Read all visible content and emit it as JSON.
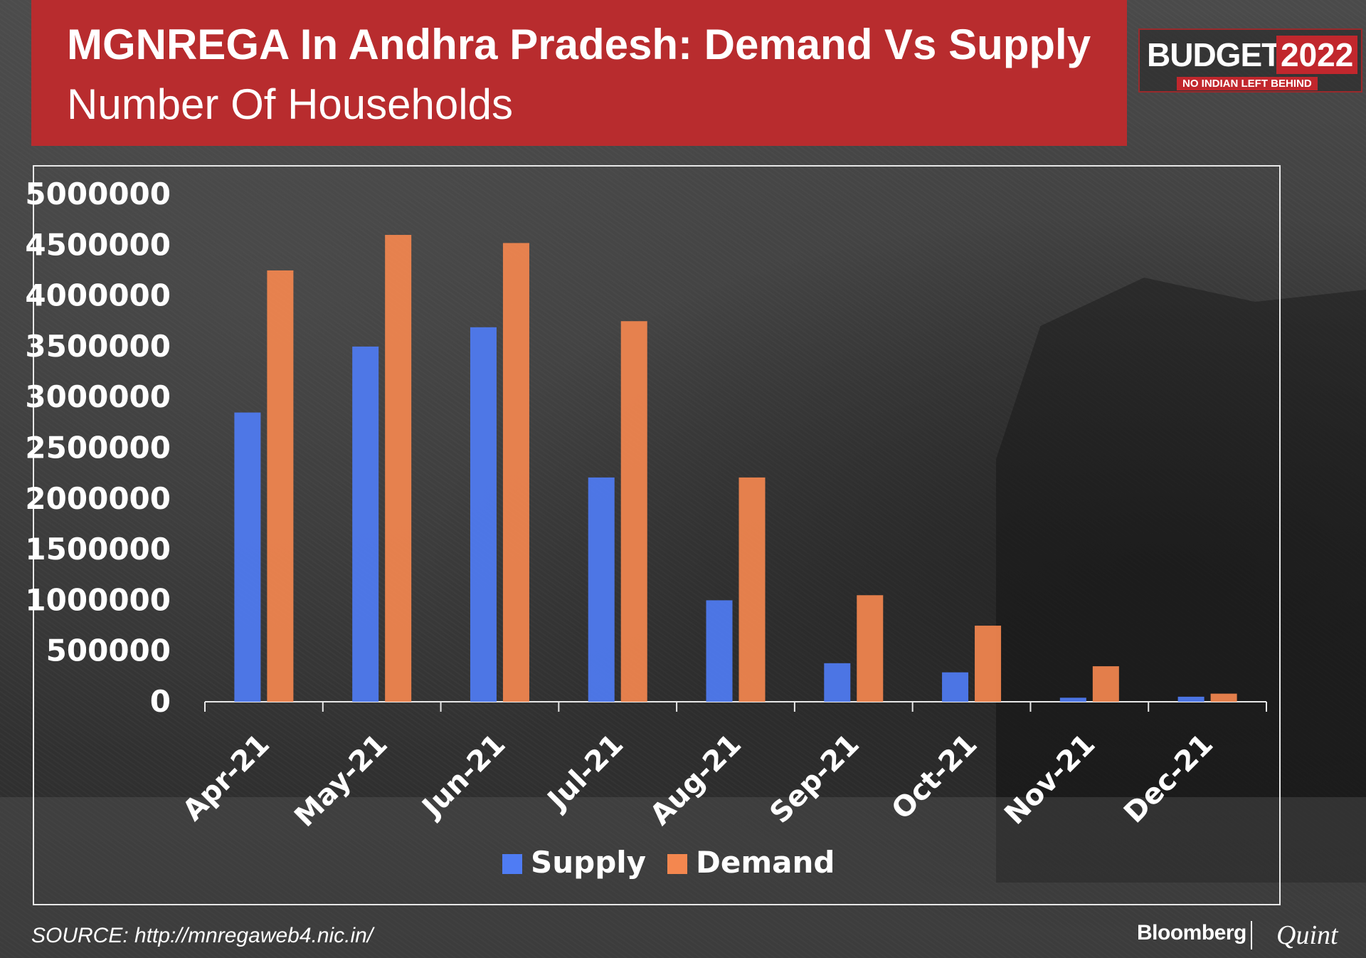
{
  "header": {
    "title": "MGNREGA In Andhra Pradesh: Demand Vs Supply",
    "subtitle": "Number Of Households"
  },
  "badge": {
    "budget_label": "BUDGET",
    "year_label": "2022",
    "tagline": "NO INDIAN LEFT BEHIND"
  },
  "footer": {
    "source": "SOURCE: http://mnregaweb4.nic.in/",
    "logo_left": "Bloomberg",
    "logo_right": "Quint"
  },
  "colors": {
    "title_background": "#b82c2e",
    "supply": "#4f7cf4",
    "demand": "#f4874f",
    "axis": "#e8e8e8",
    "text": "#ffffff"
  },
  "chart_data": {
    "type": "bar",
    "title": "MGNREGA In Andhra Pradesh: Demand Vs Supply",
    "subtitle": "Number Of Households",
    "categories": [
      "Apr-21",
      "May-21",
      "Jun-21",
      "Jul-21",
      "Aug-21",
      "Sep-21",
      "Oct-21",
      "Nov-21",
      "Dec-21"
    ],
    "series": [
      {
        "name": "Supply",
        "values": [
          2850000,
          3500000,
          3690000,
          2210000,
          1000000,
          380000,
          290000,
          40000,
          50000
        ]
      },
      {
        "name": "Demand",
        "values": [
          4250000,
          4600000,
          4520000,
          3750000,
          2210000,
          1050000,
          750000,
          350000,
          80000
        ]
      }
    ],
    "xlabel": "",
    "ylabel": "",
    "ylim": [
      0,
      5000000
    ],
    "yticks": [
      "0",
      "500000",
      "1000000",
      "1500000",
      "2000000",
      "2500000",
      "3000000",
      "3500000",
      "4000000",
      "4500000",
      "5000000"
    ],
    "grid": false,
    "legend_position": "bottom"
  }
}
